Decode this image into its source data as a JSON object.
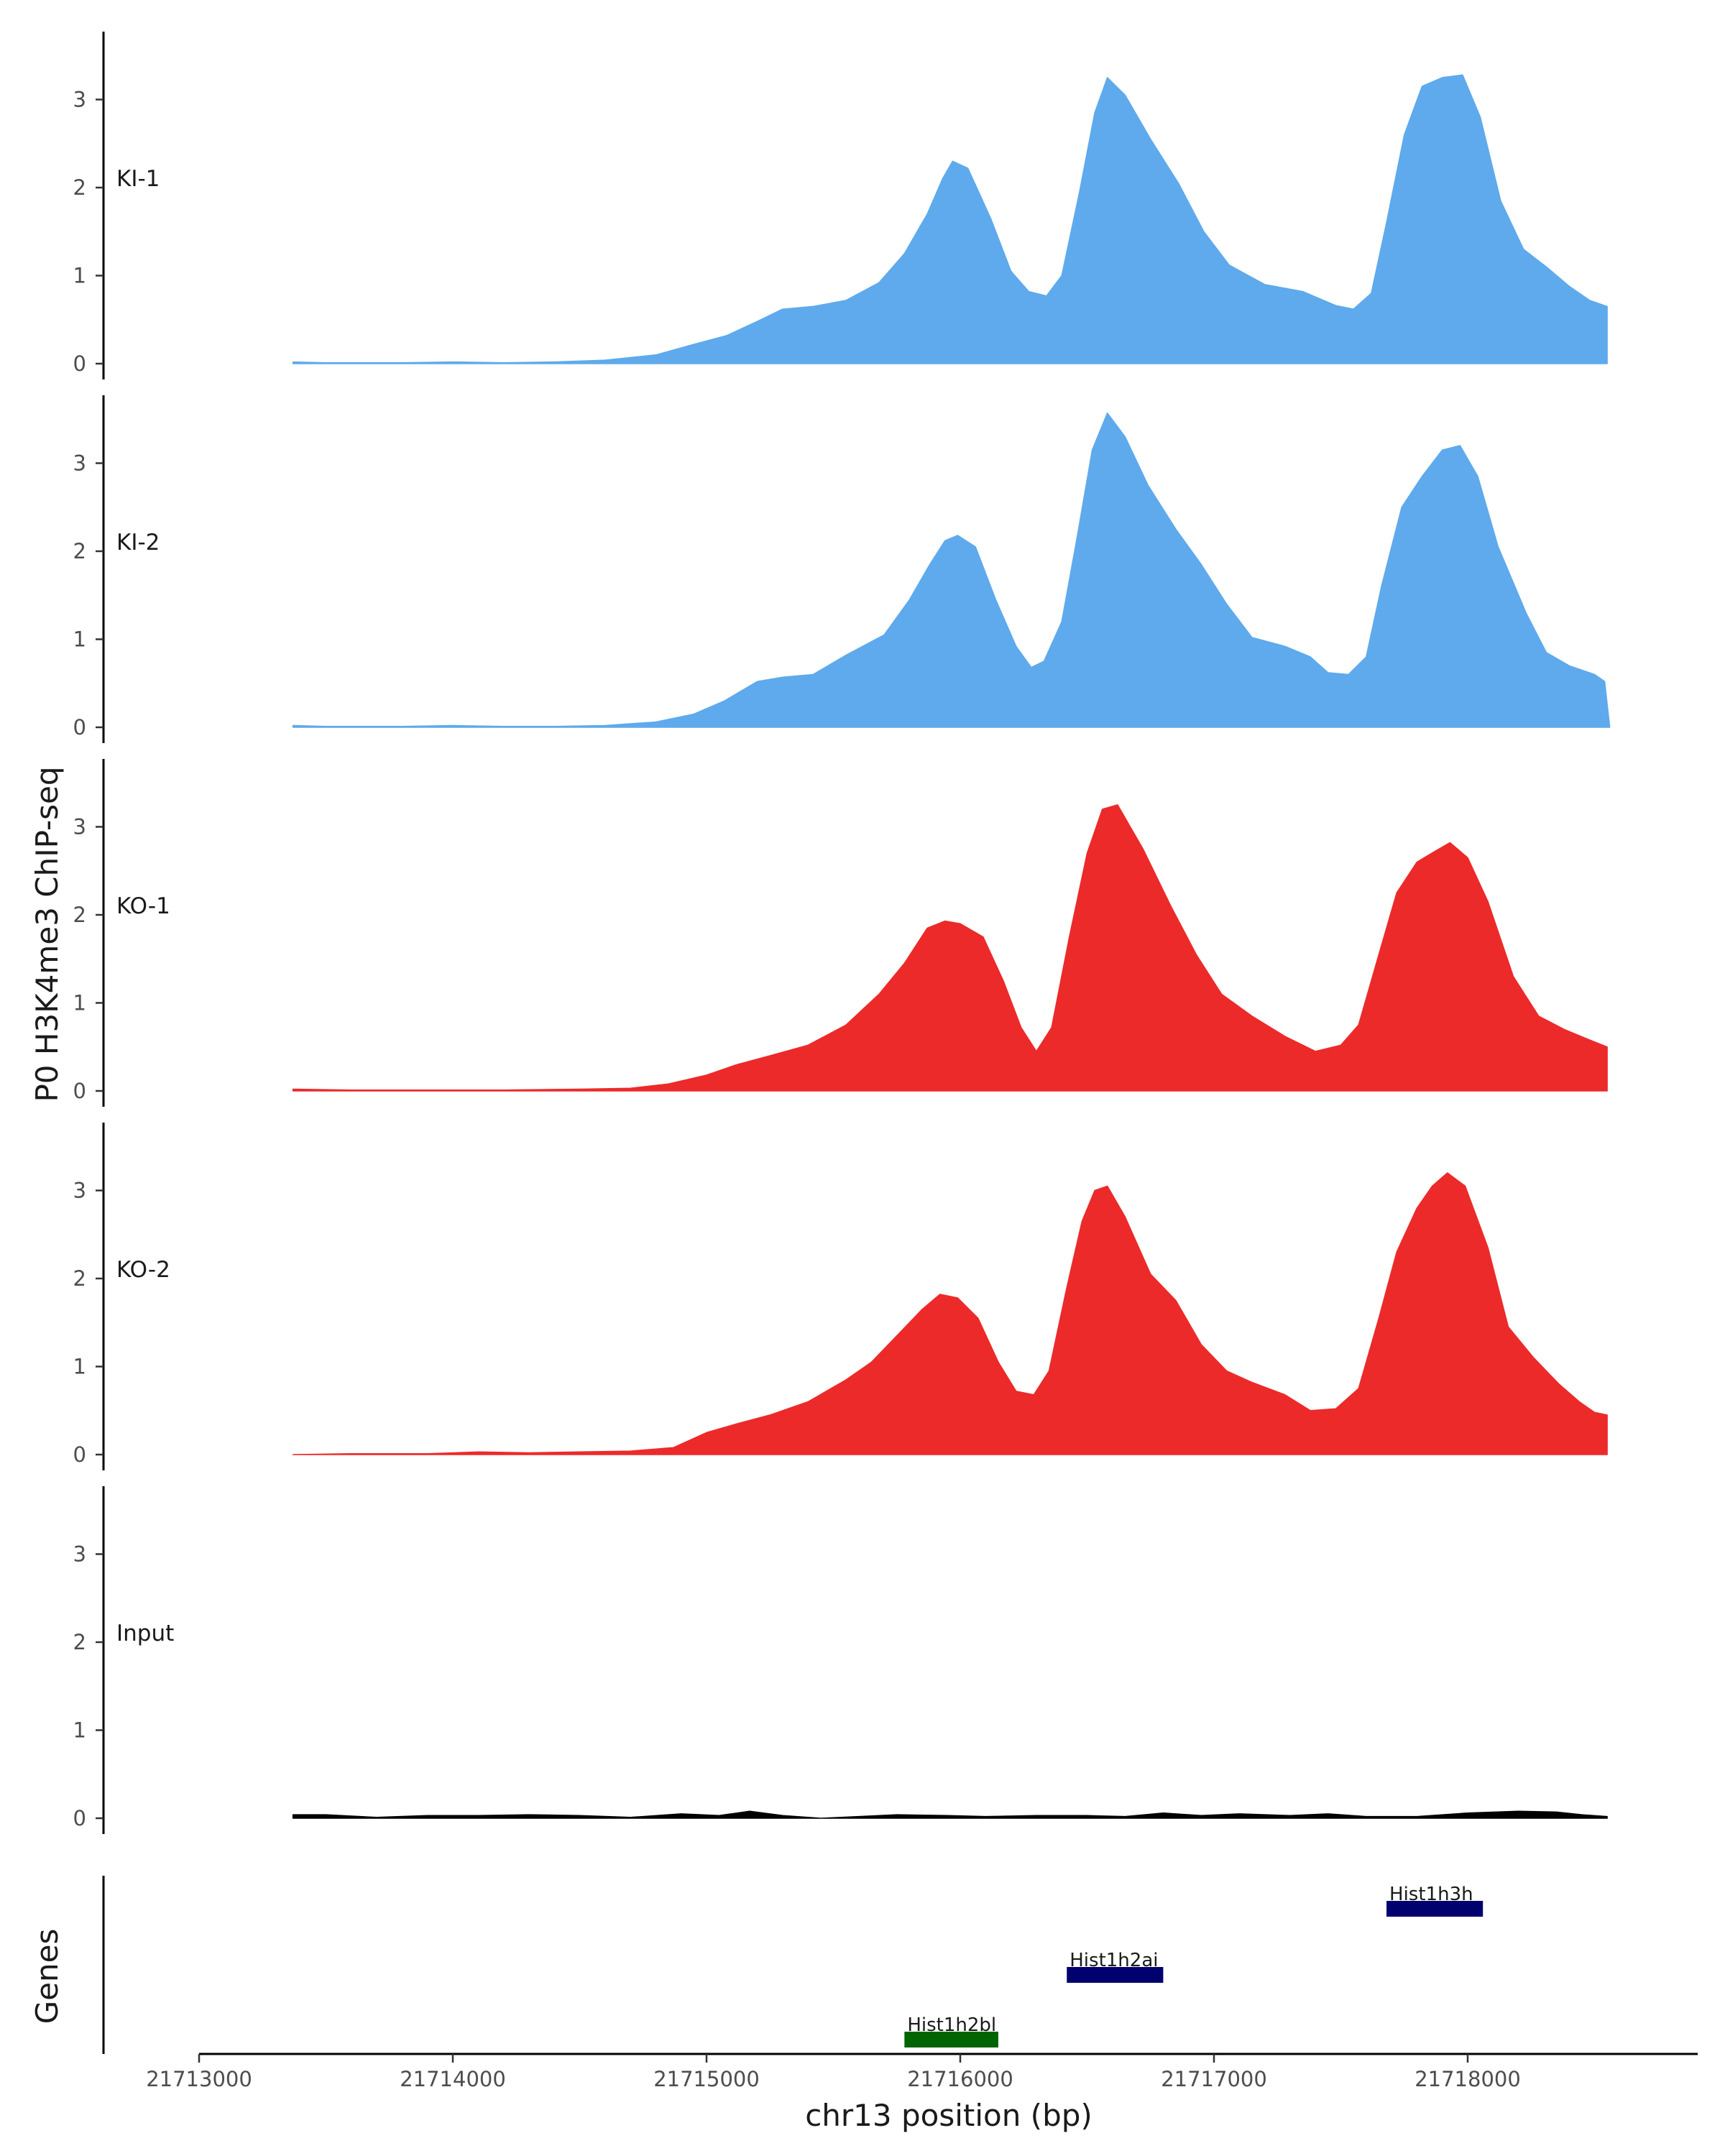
{
  "chart_data": {
    "type": "area",
    "title": "",
    "xlabel": "chr13 position (bp)",
    "ylabel": "P0 H3K4me3 ChIP-seq",
    "genes_label": "Genes",
    "xlim": [
      21712900,
      21718900
    ],
    "ylim": [
      0,
      3.8
    ],
    "x_ticks": [
      {
        "value": 21713000,
        "label": "21713000"
      },
      {
        "value": 21714000,
        "label": "21714000"
      },
      {
        "value": 21715000,
        "label": "21715000"
      },
      {
        "value": 21716000,
        "label": "21716000"
      },
      {
        "value": 21717000,
        "label": "21717000"
      },
      {
        "value": 21718000,
        "label": "21718000"
      }
    ],
    "y_ticks": [
      {
        "value": 0,
        "label": "0"
      },
      {
        "value": 1,
        "label": "1"
      },
      {
        "value": 2,
        "label": "2"
      },
      {
        "value": 3,
        "label": "3"
      }
    ],
    "colors": {
      "KI": "#5eaaec",
      "KO": "#ec2a2a",
      "Input": "#000000",
      "gene_plus": "#00006e",
      "gene_minus": "#006400"
    },
    "tracks": [
      {
        "name": "KI-1",
        "color": "#5eaaec",
        "points": [
          [
            21713370,
            0.02
          ],
          [
            21713500,
            0.01
          ],
          [
            21713800,
            0.01
          ],
          [
            21714000,
            0.02
          ],
          [
            21714200,
            0.01
          ],
          [
            21714400,
            0.02
          ],
          [
            21714600,
            0.04
          ],
          [
            21714800,
            0.1
          ],
          [
            21714950,
            0.22
          ],
          [
            21715080,
            0.32
          ],
          [
            21715200,
            0.48
          ],
          [
            21715300,
            0.62
          ],
          [
            21715420,
            0.65
          ],
          [
            21715550,
            0.72
          ],
          [
            21715680,
            0.92
          ],
          [
            21715780,
            1.25
          ],
          [
            21715870,
            1.7
          ],
          [
            21715930,
            2.1
          ],
          [
            21715970,
            2.3
          ],
          [
            21716030,
            2.22
          ],
          [
            21716120,
            1.65
          ],
          [
            21716200,
            1.05
          ],
          [
            21716270,
            0.82
          ],
          [
            21716340,
            0.77
          ],
          [
            21716400,
            1.0
          ],
          [
            21716470,
            1.95
          ],
          [
            21716530,
            2.85
          ],
          [
            21716580,
            3.25
          ],
          [
            21716650,
            3.05
          ],
          [
            21716750,
            2.55
          ],
          [
            21716860,
            2.05
          ],
          [
            21716960,
            1.5
          ],
          [
            21717060,
            1.12
          ],
          [
            21717200,
            0.9
          ],
          [
            21717350,
            0.82
          ],
          [
            21717480,
            0.66
          ],
          [
            21717550,
            0.62
          ],
          [
            21717620,
            0.8
          ],
          [
            21717680,
            1.6
          ],
          [
            21717750,
            2.6
          ],
          [
            21717820,
            3.15
          ],
          [
            21717900,
            3.25
          ],
          [
            21717980,
            3.28
          ],
          [
            21718050,
            2.8
          ],
          [
            21718130,
            1.85
          ],
          [
            21718220,
            1.3
          ],
          [
            21718310,
            1.1
          ],
          [
            21718400,
            0.88
          ],
          [
            21718480,
            0.72
          ],
          [
            21718550,
            0.65
          ]
        ]
      },
      {
        "name": "KI-2",
        "color": "#5eaaec",
        "points": [
          [
            21713370,
            0.02
          ],
          [
            21713500,
            0.01
          ],
          [
            21713800,
            0.01
          ],
          [
            21714000,
            0.02
          ],
          [
            21714200,
            0.01
          ],
          [
            21714400,
            0.01
          ],
          [
            21714600,
            0.02
          ],
          [
            21714800,
            0.06
          ],
          [
            21714950,
            0.15
          ],
          [
            21715070,
            0.3
          ],
          [
            21715200,
            0.52
          ],
          [
            21715300,
            0.57
          ],
          [
            21715420,
            0.6
          ],
          [
            21715550,
            0.82
          ],
          [
            21715700,
            1.05
          ],
          [
            21715800,
            1.45
          ],
          [
            21715880,
            1.85
          ],
          [
            21715940,
            2.12
          ],
          [
            21715990,
            2.18
          ],
          [
            21716060,
            2.05
          ],
          [
            21716140,
            1.45
          ],
          [
            21716220,
            0.92
          ],
          [
            21716280,
            0.68
          ],
          [
            21716330,
            0.75
          ],
          [
            21716400,
            1.2
          ],
          [
            21716460,
            2.15
          ],
          [
            21716520,
            3.15
          ],
          [
            21716580,
            3.57
          ],
          [
            21716650,
            3.3
          ],
          [
            21716740,
            2.75
          ],
          [
            21716850,
            2.25
          ],
          [
            21716950,
            1.85
          ],
          [
            21717050,
            1.4
          ],
          [
            21717150,
            1.02
          ],
          [
            21717280,
            0.92
          ],
          [
            21717380,
            0.8
          ],
          [
            21717450,
            0.62
          ],
          [
            21717530,
            0.6
          ],
          [
            21717600,
            0.8
          ],
          [
            21717660,
            1.6
          ],
          [
            21717740,
            2.5
          ],
          [
            21717820,
            2.85
          ],
          [
            21717900,
            3.15
          ],
          [
            21717970,
            3.2
          ],
          [
            21718040,
            2.85
          ],
          [
            21718120,
            2.05
          ],
          [
            21718230,
            1.3
          ],
          [
            21718310,
            0.85
          ],
          [
            21718400,
            0.7
          ],
          [
            21718500,
            0.6
          ],
          [
            21718540,
            0.52
          ],
          [
            21718560,
            0.0
          ]
        ]
      },
      {
        "name": "KO-1",
        "color": "#ec2a2a",
        "points": [
          [
            21713370,
            0.02
          ],
          [
            21713600,
            0.01
          ],
          [
            21713900,
            0.01
          ],
          [
            21714200,
            0.01
          ],
          [
            21714500,
            0.02
          ],
          [
            21714700,
            0.03
          ],
          [
            21714850,
            0.08
          ],
          [
            21715000,
            0.18
          ],
          [
            21715120,
            0.3
          ],
          [
            21715250,
            0.4
          ],
          [
            21715400,
            0.52
          ],
          [
            21715550,
            0.75
          ],
          [
            21715680,
            1.1
          ],
          [
            21715780,
            1.45
          ],
          [
            21715870,
            1.85
          ],
          [
            21715940,
            1.93
          ],
          [
            21716000,
            1.9
          ],
          [
            21716090,
            1.75
          ],
          [
            21716170,
            1.25
          ],
          [
            21716240,
            0.72
          ],
          [
            21716300,
            0.45
          ],
          [
            21716360,
            0.72
          ],
          [
            21716430,
            1.75
          ],
          [
            21716500,
            2.7
          ],
          [
            21716560,
            3.2
          ],
          [
            21716620,
            3.25
          ],
          [
            21716720,
            2.75
          ],
          [
            21716830,
            2.1
          ],
          [
            21716930,
            1.55
          ],
          [
            21717030,
            1.1
          ],
          [
            21717150,
            0.85
          ],
          [
            21717280,
            0.62
          ],
          [
            21717400,
            0.45
          ],
          [
            21717500,
            0.52
          ],
          [
            21717570,
            0.75
          ],
          [
            21717650,
            1.55
          ],
          [
            21717720,
            2.25
          ],
          [
            21717800,
            2.6
          ],
          [
            21717870,
            2.72
          ],
          [
            21717930,
            2.82
          ],
          [
            21718000,
            2.65
          ],
          [
            21718080,
            2.15
          ],
          [
            21718180,
            1.3
          ],
          [
            21718280,
            0.85
          ],
          [
            21718380,
            0.7
          ],
          [
            21718480,
            0.58
          ],
          [
            21718550,
            0.5
          ]
        ]
      },
      {
        "name": "KO-2",
        "color": "#ec2a2a",
        "points": [
          [
            21713370,
            0.0
          ],
          [
            21713600,
            0.01
          ],
          [
            21713900,
            0.01
          ],
          [
            21714100,
            0.03
          ],
          [
            21714300,
            0.02
          ],
          [
            21714500,
            0.03
          ],
          [
            21714700,
            0.04
          ],
          [
            21714870,
            0.08
          ],
          [
            21715000,
            0.25
          ],
          [
            21715120,
            0.35
          ],
          [
            21715250,
            0.45
          ],
          [
            21715400,
            0.6
          ],
          [
            21715550,
            0.85
          ],
          [
            21715650,
            1.05
          ],
          [
            21715750,
            1.35
          ],
          [
            21715850,
            1.65
          ],
          [
            21715920,
            1.82
          ],
          [
            21715990,
            1.78
          ],
          [
            21716070,
            1.55
          ],
          [
            21716150,
            1.05
          ],
          [
            21716220,
            0.72
          ],
          [
            21716290,
            0.68
          ],
          [
            21716350,
            0.95
          ],
          [
            21716420,
            1.9
          ],
          [
            21716480,
            2.65
          ],
          [
            21716530,
            3.0
          ],
          [
            21716580,
            3.05
          ],
          [
            21716650,
            2.7
          ],
          [
            21716750,
            2.05
          ],
          [
            21716850,
            1.75
          ],
          [
            21716950,
            1.25
          ],
          [
            21717050,
            0.95
          ],
          [
            21717150,
            0.82
          ],
          [
            21717280,
            0.68
          ],
          [
            21717380,
            0.5
          ],
          [
            21717480,
            0.52
          ],
          [
            21717570,
            0.75
          ],
          [
            21717650,
            1.55
          ],
          [
            21717720,
            2.3
          ],
          [
            21717800,
            2.8
          ],
          [
            21717860,
            3.05
          ],
          [
            21717920,
            3.2
          ],
          [
            21717990,
            3.05
          ],
          [
            21718080,
            2.35
          ],
          [
            21718160,
            1.45
          ],
          [
            21718260,
            1.1
          ],
          [
            21718360,
            0.8
          ],
          [
            21718440,
            0.6
          ],
          [
            21718500,
            0.48
          ],
          [
            21718550,
            0.45
          ]
        ]
      },
      {
        "name": "Input",
        "color": "#000000",
        "points": [
          [
            21713370,
            0.04
          ],
          [
            21713500,
            0.04
          ],
          [
            21713700,
            0.01
          ],
          [
            21713900,
            0.03
          ],
          [
            21714100,
            0.03
          ],
          [
            21714300,
            0.04
          ],
          [
            21714500,
            0.03
          ],
          [
            21714700,
            0.01
          ],
          [
            21714900,
            0.05
          ],
          [
            21715050,
            0.03
          ],
          [
            21715170,
            0.08
          ],
          [
            21715300,
            0.03
          ],
          [
            21715450,
            0.0
          ],
          [
            21715600,
            0.02
          ],
          [
            21715750,
            0.04
          ],
          [
            21715950,
            0.03
          ],
          [
            21716100,
            0.02
          ],
          [
            21716300,
            0.03
          ],
          [
            21716500,
            0.03
          ],
          [
            21716650,
            0.02
          ],
          [
            21716800,
            0.06
          ],
          [
            21716950,
            0.03
          ],
          [
            21717100,
            0.05
          ],
          [
            21717300,
            0.03
          ],
          [
            21717450,
            0.05
          ],
          [
            21717600,
            0.02
          ],
          [
            21717800,
            0.02
          ],
          [
            21718000,
            0.06
          ],
          [
            21718200,
            0.08
          ],
          [
            21718350,
            0.07
          ],
          [
            21718450,
            0.04
          ],
          [
            21718550,
            0.02
          ]
        ]
      }
    ],
    "genes": [
      {
        "name": "Hist1h3h",
        "start": 21717680,
        "end": 21718060,
        "strand": "-",
        "color": "#00006e",
        "row": 3
      },
      {
        "name": "Hist1h2ai",
        "start": 21716420,
        "end": 21716800,
        "strand": "-",
        "color": "#00006e",
        "row": 2
      },
      {
        "name": "Hist1h2bl",
        "start": 21715780,
        "end": 21716150,
        "strand": "+",
        "color": "#006400",
        "row": 1
      }
    ]
  }
}
